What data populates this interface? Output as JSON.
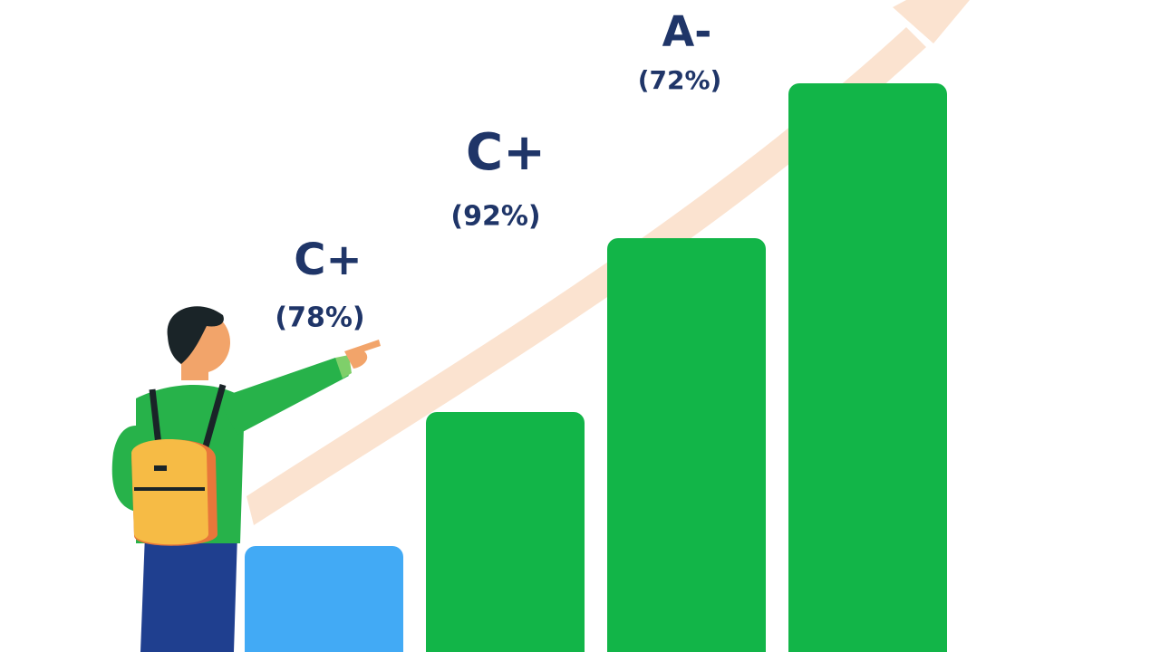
{
  "labels": [
    {
      "grade": "C+",
      "percent": "(78%)"
    },
    {
      "grade": "C+",
      "percent": "(92%)"
    },
    {
      "grade": "A-",
      "percent": "(72%)"
    }
  ]
}
